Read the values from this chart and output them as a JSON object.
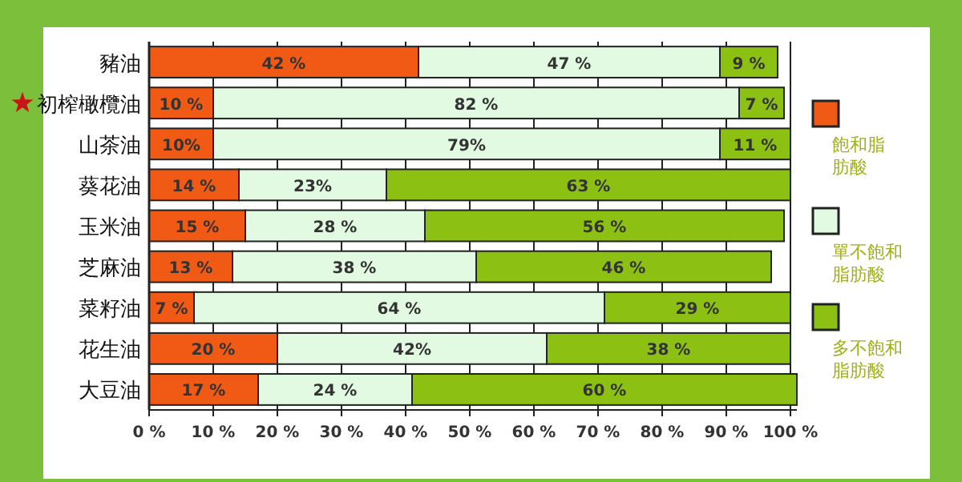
{
  "chart_data": {
    "type": "bar",
    "orientation": "horizontal",
    "stacked": true,
    "categories": [
      "豬油",
      "初榨橄欖油",
      "山茶油",
      "葵花油",
      "玉米油",
      "芝麻油",
      "菜籽油",
      "花生油",
      "大豆油"
    ],
    "series": [
      {
        "name": "飽和脂肪酸",
        "color": "#f05a14",
        "values": [
          42,
          10,
          10,
          14,
          15,
          13,
          7,
          20,
          17
        ],
        "value_labels": [
          "42 %",
          "10 %",
          "10%",
          "14 %",
          "15 %",
          "13 %",
          "7 %",
          "20 %",
          "17 %"
        ]
      },
      {
        "name": "單不飽和脂肪酸",
        "color": "#e2fae2",
        "values": [
          47,
          82,
          79,
          23,
          28,
          38,
          64,
          42,
          24
        ],
        "value_labels": [
          "47 %",
          "82 %",
          "79%",
          "23%",
          "28 %",
          "38 %",
          "64 %",
          "42%",
          "24 %"
        ]
      },
      {
        "name": "多不飽和脂肪酸",
        "color": "#8cc012",
        "values": [
          9,
          7,
          11,
          63,
          56,
          46,
          29,
          38,
          60
        ],
        "value_labels": [
          "9 %",
          "7 %",
          "11 %",
          "63 %",
          "56 %",
          "46 %",
          "29 %",
          "38 %",
          "60 %"
        ]
      }
    ],
    "xlim": [
      0,
      101
    ],
    "xticks": [
      {
        "value": 0,
        "label": "0 %"
      },
      {
        "value": 10,
        "label": "10 %"
      },
      {
        "value": 20,
        "label": "20 %"
      },
      {
        "value": 30,
        "label": "30 %"
      },
      {
        "value": 40,
        "label": "40 %"
      },
      {
        "value": 50,
        "label": "50 %"
      },
      {
        "value": 60,
        "label": "60 %"
      },
      {
        "value": 70,
        "label": "70 %"
      },
      {
        "value": 80,
        "label": "80 %"
      },
      {
        "value": 90,
        "label": "90 %"
      },
      {
        "value": 100,
        "label": "100 %"
      }
    ],
    "grid": "x",
    "legend": "right"
  }
}
